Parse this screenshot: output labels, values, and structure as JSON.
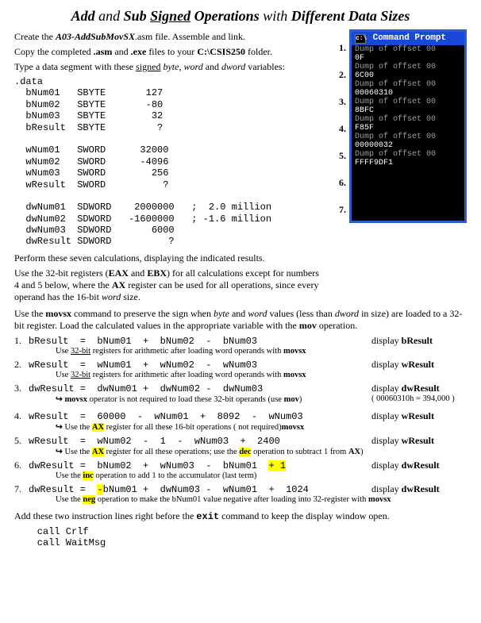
{
  "title": {
    "parts": [
      "Add",
      " and ",
      "Sub",
      " ",
      "Signed",
      " Operations",
      " with ",
      "Different Data Sizes"
    ]
  },
  "intro": {
    "line1a": "Create the ",
    "line1b": "A03-AddSubMovSX",
    "line1c": ".asm file.  Assemble and link.",
    "line2a": "Copy the completed ",
    "line2b": ".asm",
    "line2c": " and ",
    "line2d": ".exe",
    "line2e": " files to your ",
    "line2f": "C:\\CSIS250",
    "line2g": " folder.",
    "line3a": "Type a data segment with these ",
    "line3b": "signed",
    "line3c": " ",
    "line3d": "byte",
    "line3e": ", ",
    "line3f": "word",
    "line3g": " and ",
    "line3h": "dword",
    "line3i": " variables:"
  },
  "codeblock": ".data\n  bNum01   SBYTE       127\n  bNum02   SBYTE       -80\n  bNum03   SBYTE        32\n  bResult  SBYTE         ?\n\n  wNum01   SWORD      32000\n  wNum02   SWORD      -4096\n  wNum03   SWORD        256\n  wResult  SWORD          ?\n\n  dwNum01  SDWORD    2000000   ;  2.0 million\n  dwNum02  SDWORD   -1600000   ; -1.6 million\n  dwNum03  SDWORD       6000\n  dwResult SDWORD          ?",
  "mid": {
    "p1": "Perform these seven calculations, displaying the indicated results.",
    "p2a": "Use the 32-bit registers (",
    "p2b": "EAX",
    "p2c": " and ",
    "p2d": "EBX",
    "p2e": ") for all calculations except for numbers 4 and 5 below, where the ",
    "p2f": "AX",
    "p2g": " register can be used for all operations, since every operand has the 16-bit ",
    "p2h": "word",
    "p2i": " size."
  },
  "cmd": {
    "title": "Command Prompt",
    "dumpLabel": "Dump of offset 00",
    "vals": [
      "0F",
      "6C00",
      "00060310",
      "8BFC",
      "F85F",
      "00000032",
      "FFFF9DF1"
    ]
  },
  "rightnums": [
    "1.",
    "2.",
    "3.",
    "4.",
    "5.",
    "6.",
    "7."
  ],
  "postcmd": {
    "a": "Use the ",
    "b": "movsx",
    "c": " command to preserve the sign when ",
    "d": "byte",
    "e": " and ",
    "f": "word",
    "g": " values (less than ",
    "h": "dword",
    "i": " in size) are loaded to a 32-bit register. Load the calculated values in the appropriate variable with the ",
    "j": "mov",
    "k": " operation."
  },
  "calc": {
    "rows": [
      {
        "n": "1.",
        "expr": "bResult  =  bNum01  +  bNum02  -  bNum03",
        "disp": "bResult"
      },
      {
        "n": "2.",
        "expr": "wResult  =  wNum01  +  wNum02  -  wNum03",
        "disp": "wResult"
      },
      {
        "n": "3.",
        "expr": "dwResult =  dwNum01 +  dwNum02 -  dwNum03",
        "disp": "dwResult"
      },
      {
        "n": "4.",
        "expr": "wResult  =  60000  -  wNum01  +  8092  -  wNum03",
        "disp": "wResult"
      },
      {
        "n": "5.",
        "expr": "wResult  =  wNum02  -  1  -  wNum03  +  2400",
        "disp": "wResult",
        "hl": [
          "- 1"
        ]
      },
      {
        "n": "6.",
        "expr": "dwResult =  bNum02  +  wNum03  -  bNum01  + 1",
        "disp": "dwResult",
        "hl": [
          "+ 1"
        ]
      },
      {
        "n": "7.",
        "expr": "dwResult =  -bNum01 +  dwNum03 -  wNum01  +  1024",
        "disp": "dwResult",
        "hl": [
          "-"
        ]
      }
    ],
    "dispPrefix": "display  ",
    "notes": {
      "1": {
        "text": "Use 32-bit registers for arithmetic after loading word operands with movsx",
        "u": "32-bit"
      },
      "2": {
        "text": "Use 32-bit registers for arithmetic after loading word operands with movsx",
        "u": "32-bit"
      },
      "3": {
        "arrow": true,
        "plain": "movsx",
        "rest": " operator is not required to load these 32-bit operands  (use ",
        "b": "mov",
        "rest2": ")",
        "side": "( 00060310h = 394,000 )"
      },
      "4": {
        "arrow": true,
        "plain": "Use the ",
        "hl": "AX",
        "rest": " register for all these 16-bit operations (",
        "b": "movsx",
        "rest2": " not required)"
      },
      "5": {
        "arrow": true,
        "plain": "Use the ",
        "hl": "AX",
        "rest": " register for all these operations; use the ",
        "hl2": "dec",
        "rest2": " operation to subtract 1 from ",
        "b": "AX",
        "rest3": ")"
      },
      "6": {
        "plain": "Use the ",
        "hl": "inc",
        "rest": " operation to add 1 to the accumulator (last term)"
      },
      "7": {
        "plain": "Use the ",
        "hl": "neg",
        "rest": " operation to make the bNum01 value negative after loading into 32-register with ",
        "b": "movsx"
      }
    }
  },
  "tail": {
    "a": "Add these two instruction lines right before the ",
    "b": "exit",
    "c": " command to keep the display window open.",
    "code": "    call Crlf\n    call WaitMsg"
  }
}
